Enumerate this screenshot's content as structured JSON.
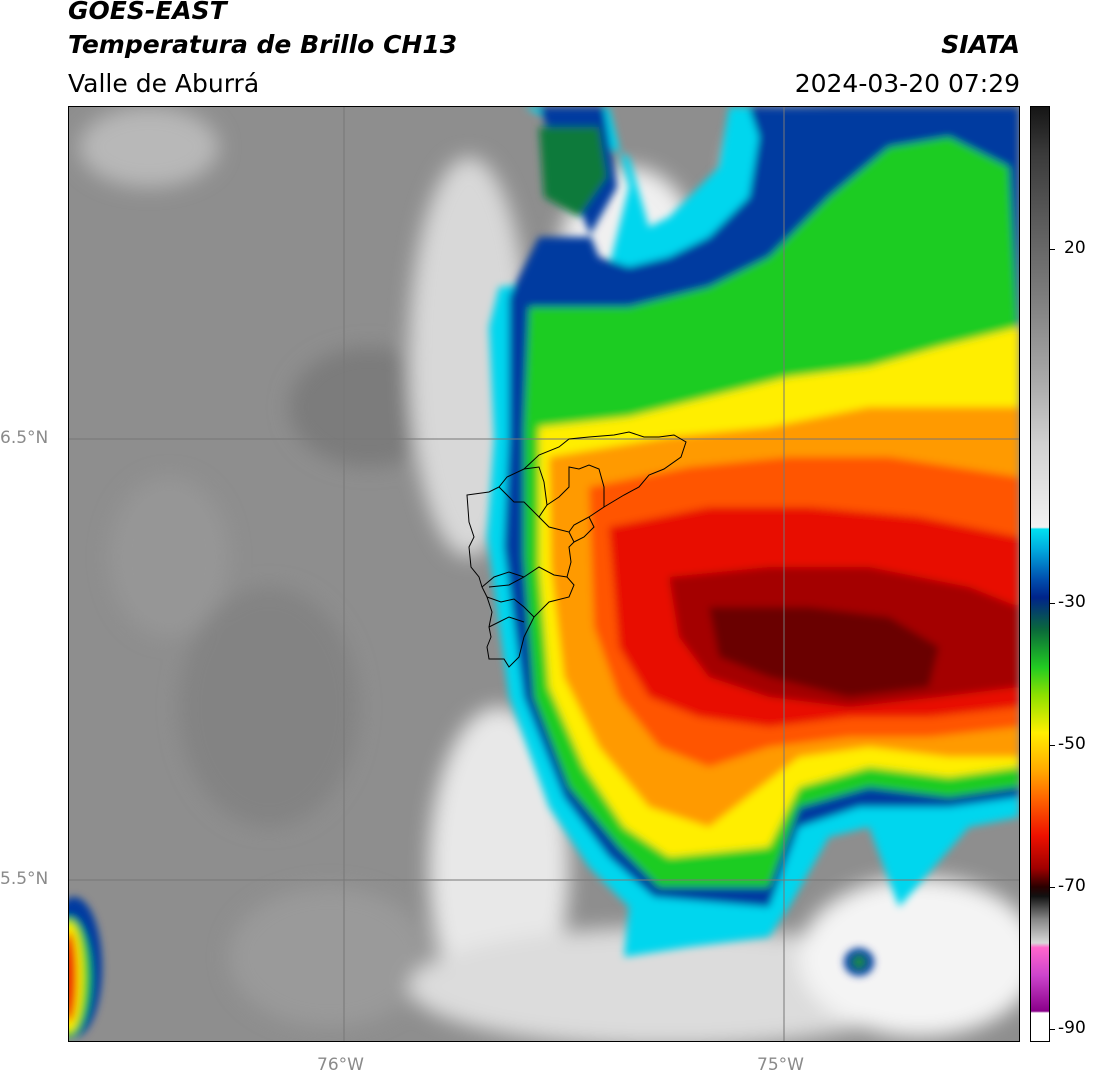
{
  "header": {
    "line1": "GOES-EAST",
    "line2": "Temperatura de Brillo CH13",
    "line3": "Valle de Aburrá",
    "org": "SIATA",
    "datetime": "2024-03-20 07:29"
  },
  "map": {
    "lat_labels": [
      "6.5°N",
      "5.5°N"
    ],
    "lon_labels": [
      "76°W",
      "75°W"
    ]
  },
  "colorbar": {
    "ticks": [
      "20",
      "-30",
      "-50",
      "-70",
      "-90"
    ],
    "colors": {
      "cyan": "#00e0f0",
      "dark_blue": "#002a8a",
      "green": "#22cc22",
      "yellow": "#ffee00",
      "orange": "#ff8800",
      "red": "#ee1100",
      "dark_red": "#6a0000",
      "magenta": "#cc44cc",
      "purple": "#7a007a"
    }
  }
}
